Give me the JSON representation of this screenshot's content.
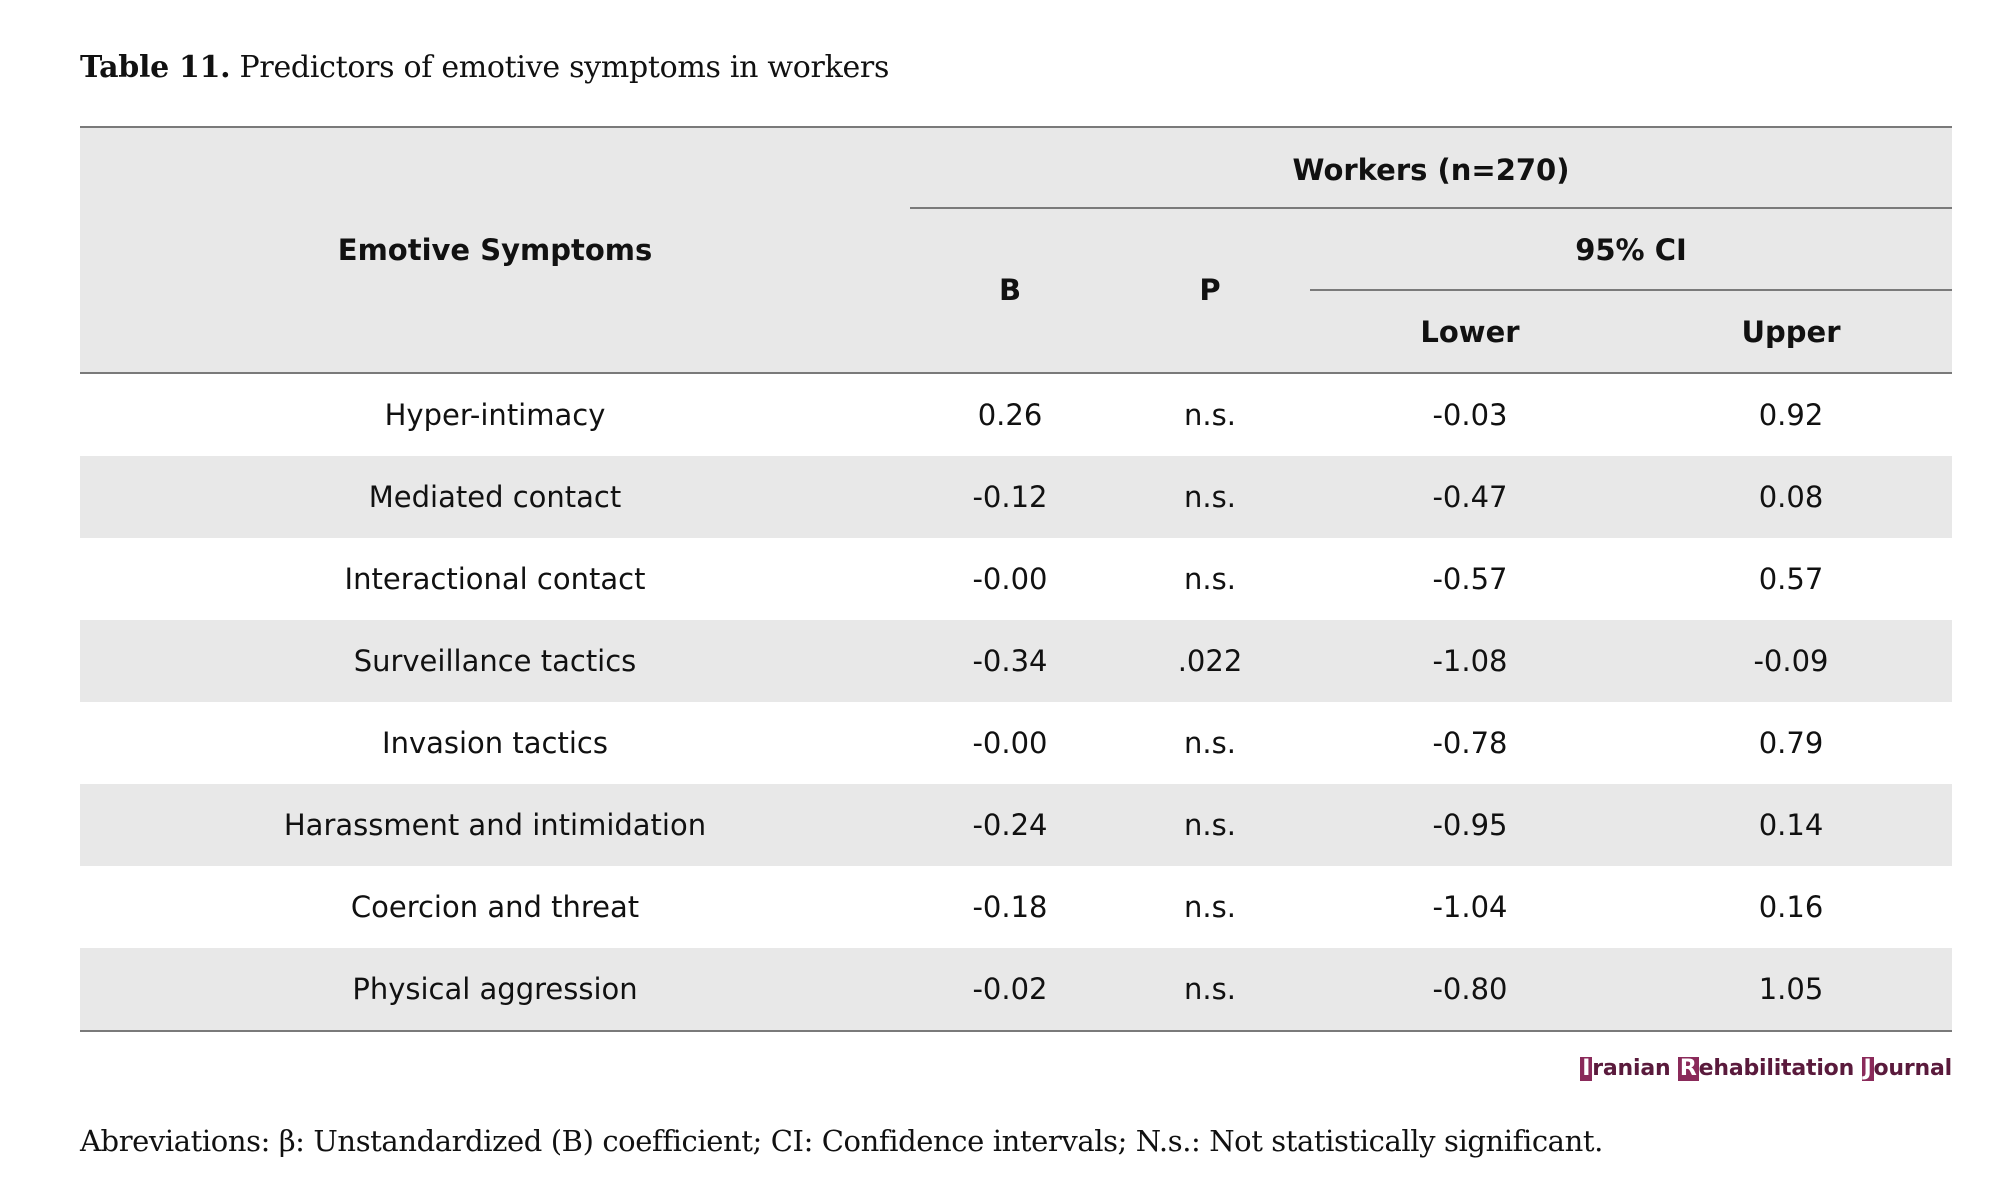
{
  "caption": {
    "label": "Table 11.",
    "text": "Predictors of emotive symptoms in workers"
  },
  "header": {
    "row_label": "Emotive Symptoms",
    "group": "Workers (n=270)",
    "b": "B",
    "p": "P",
    "ci": "95% CI",
    "lower": "Lower",
    "upper": "Upper"
  },
  "rows": [
    {
      "label": "Hyper-intimacy",
      "b": "0.26",
      "p": "n.s.",
      "lower": "-0.03",
      "upper": "0.92"
    },
    {
      "label": "Mediated contact",
      "b": "-0.12",
      "p": "n.s.",
      "lower": "-0.47",
      "upper": "0.08"
    },
    {
      "label": "Interactional contact",
      "b": "-0.00",
      "p": "n.s.",
      "lower": "-0.57",
      "upper": "0.57"
    },
    {
      "label": "Surveillance tactics",
      "b": "-0.34",
      "p": ".022",
      "lower": "-1.08",
      "upper": "-0.09"
    },
    {
      "label": "Invasion tactics",
      "b": "-0.00",
      "p": "n.s.",
      "lower": "-0.78",
      "upper": "0.79"
    },
    {
      "label": "Harassment and intimidation",
      "b": "-0.24",
      "p": "n.s.",
      "lower": "-0.95",
      "upper": "0.14"
    },
    {
      "label": "Coercion and threat",
      "b": "-0.18",
      "p": "n.s.",
      "lower": "-1.04",
      "upper": "0.16"
    },
    {
      "label": "Physical aggression",
      "b": "-0.02",
      "p": "n.s.",
      "lower": "-0.80",
      "upper": "1.05"
    }
  ],
  "journal": {
    "i1": "I",
    "w1": "ranian ",
    "i2": "R",
    "w2": "ehabilitation ",
    "i3": "J",
    "w3": "ournal"
  },
  "footnote": "Abreviations: β: Unstandardized (B) coefficient; CI: Confidence intervals; N.s.: Not statistically significant."
}
